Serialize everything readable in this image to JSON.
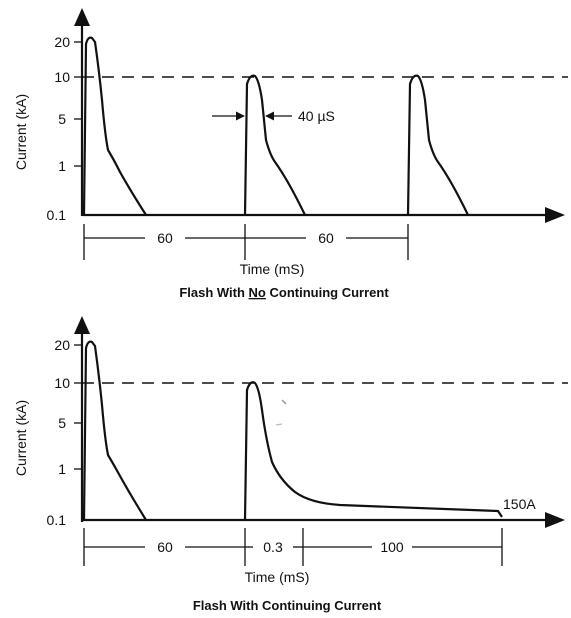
{
  "top": {
    "y_label": "Current (kA)",
    "y_ticks": [
      "20",
      "10",
      "5",
      "1",
      "0.1"
    ],
    "pulse_width_label": "40 µS",
    "interval_labels": [
      "60",
      "60"
    ],
    "x_label": "Time (mS)",
    "caption_prefix": "Flash With ",
    "caption_underlined": "No",
    "caption_suffix": " Continuing Current"
  },
  "bottom": {
    "y_label": "Current (kA)",
    "y_ticks": [
      "20",
      "10",
      "5",
      "1",
      "0.1"
    ],
    "end_label": "150A",
    "interval_labels": [
      "60",
      "0.3",
      "100"
    ],
    "x_label": "Time (mS)",
    "caption": "Flash With Continuing Current"
  }
}
